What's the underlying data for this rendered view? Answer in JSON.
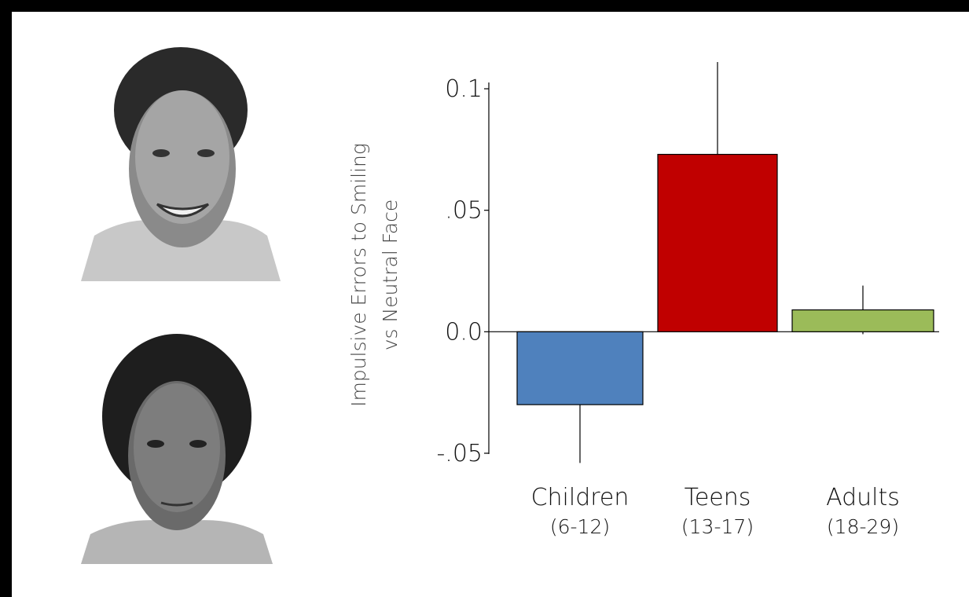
{
  "chart_data": {
    "type": "bar",
    "y_label": [
      "Impulsive Errors to Smiling",
      "vs Neutral Face"
    ],
    "categories": [
      "Children",
      "Teens",
      "Adults"
    ],
    "category_ranges": [
      "(6-12)",
      "(13-17)",
      "(18-29)"
    ],
    "values": [
      -0.03,
      0.073,
      0.009
    ],
    "errors": [
      0.024,
      0.038,
      0.01
    ],
    "colors": [
      "#4f81bd",
      "#c00000",
      "#9bbb59"
    ],
    "ylim": [
      -0.05,
      0.1
    ],
    "yticks": [
      {
        "value": -0.05,
        "label": "-.05"
      },
      {
        "value": 0,
        "label": "0.0"
      },
      {
        "value": 0.05,
        "label": ".05"
      },
      0.1
    ]
  }
}
